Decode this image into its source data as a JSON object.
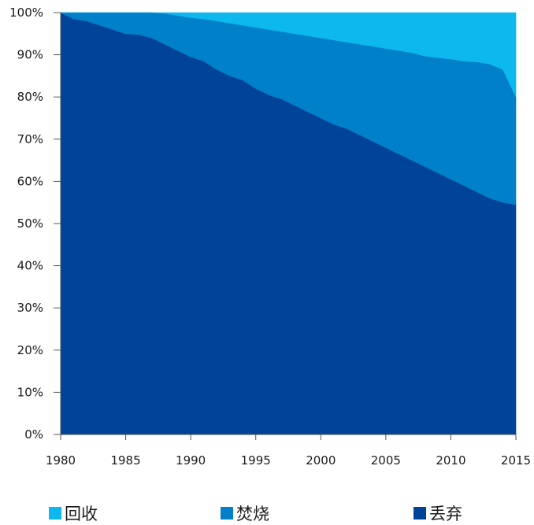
{
  "chart_data": {
    "type": "area",
    "stacked": true,
    "normalized": true,
    "x": [
      1980,
      1981,
      1982,
      1983,
      1984,
      1985,
      1986,
      1987,
      1988,
      1989,
      1990,
      1991,
      1992,
      1993,
      1994,
      1995,
      1996,
      1997,
      1998,
      1999,
      2000,
      2001,
      2002,
      2003,
      2004,
      2005,
      2006,
      2007,
      2008,
      2009,
      2010,
      2011,
      2012,
      2013,
      2014,
      2015
    ],
    "series": [
      {
        "name": "丢弃",
        "color": "#00449a",
        "values": [
          100,
          98.5,
          98,
          97,
          96,
          95,
          94.8,
          94,
          92.5,
          91,
          89.5,
          88.5,
          86.5,
          85,
          84,
          82,
          80.5,
          79.5,
          78,
          76.5,
          75,
          73.5,
          72.5,
          71,
          69.5,
          68,
          66.5,
          65,
          63.5,
          62,
          60.5,
          59,
          57.5,
          56,
          55,
          54.5
        ]
      },
      {
        "name": "焚烧",
        "color": "#0080c8",
        "values": [
          0,
          1.5,
          2,
          3,
          4,
          5,
          5.2,
          6,
          7.3,
          8.3,
          9.3,
          10,
          11.5,
          12.5,
          13,
          14.5,
          15.5,
          16,
          17,
          18,
          19,
          20,
          20.5,
          21.5,
          22.5,
          23.5,
          24.5,
          25.5,
          26.2,
          27.3,
          28.5,
          29.5,
          30.8,
          31.8,
          31.5,
          25.5
        ]
      },
      {
        "name": "回收",
        "color": "#0cb8ee",
        "values": [
          0,
          0,
          0,
          0,
          0,
          0,
          0,
          0,
          0.2,
          0.7,
          1.2,
          1.5,
          2,
          2.5,
          3,
          3.5,
          4,
          4.5,
          5,
          5.5,
          6,
          6.5,
          7,
          7.5,
          8,
          8.5,
          9,
          9.5,
          10.3,
          10.7,
          11,
          11.5,
          11.7,
          12.2,
          13.5,
          20
        ]
      }
    ],
    "y_ticks": [
      "0%",
      "10%",
      "20%",
      "30%",
      "40%",
      "50%",
      "60%",
      "70%",
      "80%",
      "90%",
      "100%"
    ],
    "x_ticks": [
      "1980",
      "1985",
      "1990",
      "1995",
      "2000",
      "2005",
      "2010",
      "2015"
    ],
    "xlim": [
      1980,
      2015
    ],
    "ylim": [
      0,
      100
    ],
    "legend_position": "bottom",
    "grid": false
  },
  "legend": [
    {
      "label": "回收",
      "color": "#0cb8ee"
    },
    {
      "label": "焚烧",
      "color": "#0080c8"
    },
    {
      "label": "丢弃",
      "color": "#00449a"
    }
  ]
}
